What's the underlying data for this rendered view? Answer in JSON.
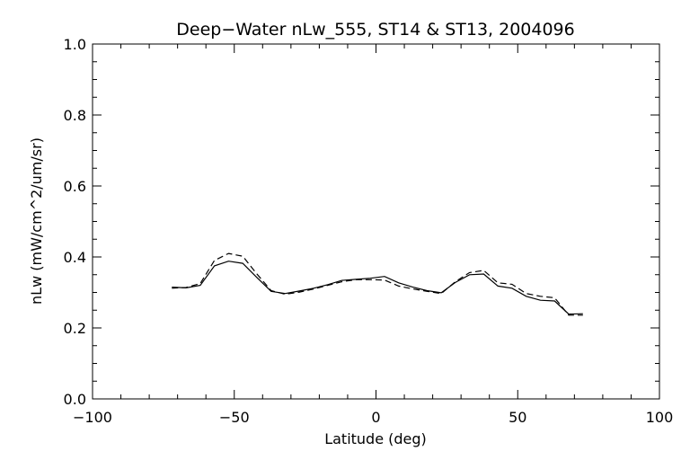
{
  "chart_data": {
    "type": "line",
    "title": "Deep−Water nLw_555, ST14 & ST13, 2004096",
    "xlabel": "Latitude (deg)",
    "ylabel": "nLw (mW/cm^2/um/sr)",
    "xlim": [
      -100,
      100
    ],
    "ylim": [
      0.0,
      1.0
    ],
    "x_ticks": [
      -100,
      -50,
      0,
      50,
      100
    ],
    "x_tick_labels": [
      "−100",
      "−50",
      "0",
      "50",
      "100"
    ],
    "y_ticks": [
      0.0,
      0.2,
      0.4,
      0.6,
      0.8,
      1.0
    ],
    "y_tick_labels": [
      "0.0",
      "0.2",
      "0.4",
      "0.6",
      "0.8",
      "1.0"
    ],
    "grid": false,
    "legend": "none",
    "series": [
      {
        "style": "solid",
        "color": "#000000",
        "x": [
          -72,
          -67,
          -62,
          -57,
          -52,
          -47,
          -42,
          -37,
          -32,
          -27,
          -22,
          -17,
          -12,
          -7,
          -2,
          3,
          8,
          13,
          18,
          23,
          28,
          33,
          38,
          43,
          48,
          53,
          58,
          63,
          68,
          73
        ],
        "y": [
          0.315,
          0.313,
          0.32,
          0.375,
          0.388,
          0.382,
          0.342,
          0.303,
          0.297,
          0.304,
          0.312,
          0.322,
          0.334,
          0.337,
          0.34,
          0.345,
          0.327,
          0.315,
          0.305,
          0.299,
          0.328,
          0.35,
          0.352,
          0.318,
          0.312,
          0.289,
          0.278,
          0.276,
          0.239,
          0.24
        ]
      },
      {
        "style": "dashed",
        "color": "#000000",
        "x": [
          -72,
          -67,
          -62,
          -57,
          -52,
          -47,
          -42,
          -37,
          -32,
          -27,
          -22,
          -17,
          -12,
          -7,
          -2,
          3,
          8,
          13,
          18,
          23,
          28,
          33,
          38,
          43,
          48,
          53,
          58,
          63,
          68,
          73
        ],
        "y": [
          0.312,
          0.314,
          0.325,
          0.39,
          0.41,
          0.402,
          0.352,
          0.305,
          0.295,
          0.301,
          0.31,
          0.32,
          0.33,
          0.336,
          0.336,
          0.335,
          0.318,
          0.31,
          0.303,
          0.297,
          0.33,
          0.356,
          0.362,
          0.327,
          0.323,
          0.297,
          0.289,
          0.285,
          0.236,
          0.236
        ]
      }
    ]
  }
}
